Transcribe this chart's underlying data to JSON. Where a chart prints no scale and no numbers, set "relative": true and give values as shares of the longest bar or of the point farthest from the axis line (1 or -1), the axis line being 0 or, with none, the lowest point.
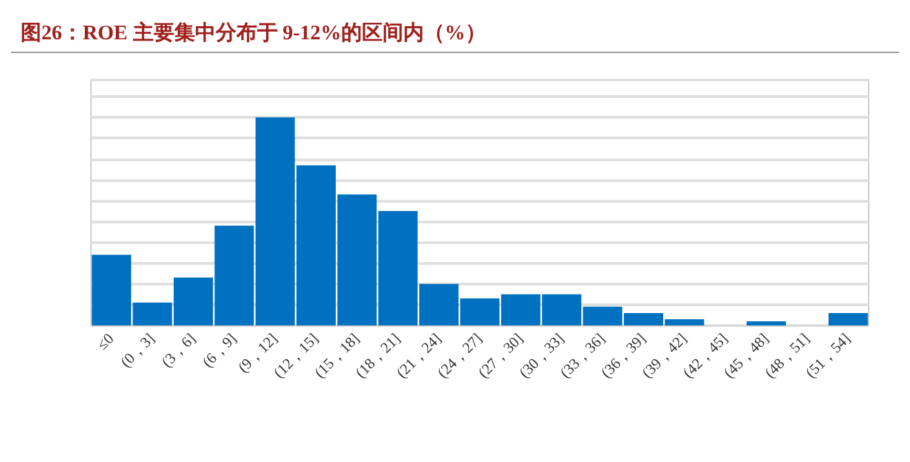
{
  "chart_data": {
    "type": "bar",
    "title": "图26：ROE 主要集中分布于 9-12%的区间内（%）",
    "categories": [
      "≤0",
      "(0，3]",
      "(3，6]",
      "(6，9]",
      "(9，12]",
      "(12，15]",
      "(15，18]",
      "(18，21]",
      "(21，24]",
      "(24，27]",
      "(27，30]",
      "(30，33]",
      "(33，36]",
      "(36，39]",
      "(39，42]",
      "(42，45]",
      "(45，48]",
      "(48，51]",
      "(51，54]"
    ],
    "values": [
      0.34,
      0.11,
      0.23,
      0.48,
      1,
      0.77,
      0.63,
      0.55,
      0.2,
      0.13,
      0.15,
      0.15,
      0.09,
      0.06,
      0.03,
      0,
      0.02,
      0,
      0.06
    ],
    "color": "#0070c0",
    "relative": true,
    "grid": "y"
  }
}
